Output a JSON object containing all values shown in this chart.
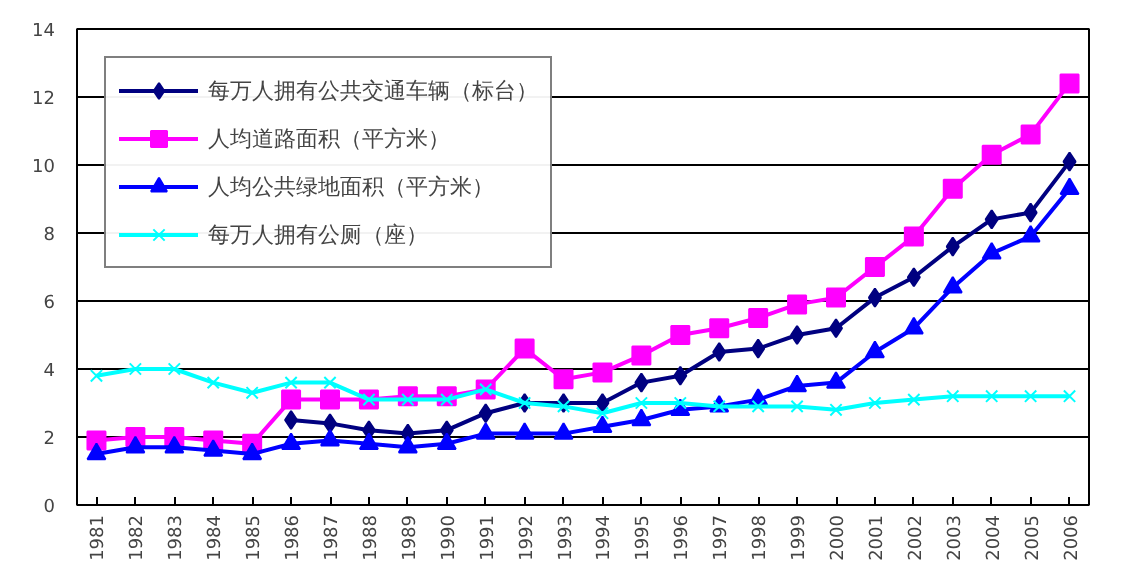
{
  "chart_data": {
    "type": "line",
    "categories": [
      "1981",
      "1982",
      "1983",
      "1984",
      "1985",
      "1986",
      "1987",
      "1988",
      "1989",
      "1990",
      "1991",
      "1992",
      "1993",
      "1994",
      "1995",
      "1996",
      "1997",
      "1998",
      "1999",
      "2000",
      "2001",
      "2002",
      "2003",
      "2004",
      "2005",
      "2006"
    ],
    "series": [
      {
        "name": "每万人拥有公共交通车辆（标台）",
        "color": "#000080",
        "marker": "diamond",
        "values": [
          null,
          null,
          null,
          null,
          null,
          2.5,
          2.4,
          2.2,
          2.1,
          2.2,
          2.7,
          3.0,
          3.0,
          3.0,
          3.6,
          3.8,
          4.5,
          4.6,
          5.0,
          5.2,
          6.1,
          6.7,
          7.6,
          8.4,
          8.6,
          10.1
        ]
      },
      {
        "name": "人均道路面积（平方米）",
        "color": "#ff00ff",
        "marker": "square",
        "values": [
          1.9,
          2.0,
          2.0,
          1.9,
          1.8,
          3.1,
          3.1,
          3.1,
          3.2,
          3.2,
          3.4,
          4.6,
          3.7,
          3.9,
          4.4,
          5.0,
          5.2,
          5.5,
          5.9,
          6.1,
          7.0,
          7.9,
          9.3,
          10.3,
          10.9,
          12.4
        ]
      },
      {
        "name": "人均公共绿地面积（平方米）",
        "color": "#0000ff",
        "marker": "triangle",
        "values": [
          1.5,
          1.7,
          1.7,
          1.6,
          1.5,
          1.8,
          1.9,
          1.8,
          1.7,
          1.8,
          2.1,
          2.1,
          2.1,
          2.3,
          2.5,
          2.8,
          2.9,
          3.1,
          3.5,
          3.6,
          4.5,
          5.2,
          6.4,
          7.4,
          7.9,
          9.3
        ]
      },
      {
        "name": "每万人拥有公厕（座）",
        "color": "#00ffff",
        "marker": "cross",
        "values": [
          3.8,
          4.0,
          4.0,
          3.6,
          3.3,
          3.6,
          3.6,
          3.1,
          3.1,
          3.1,
          3.4,
          3.0,
          2.9,
          2.7,
          3.0,
          3.0,
          2.9,
          2.9,
          2.9,
          2.8,
          3.0,
          3.1,
          3.2,
          3.2,
          3.2,
          3.2
        ]
      }
    ],
    "ylim": [
      0,
      14
    ],
    "yticks": [
      0,
      2,
      4,
      6,
      8,
      10,
      12,
      14
    ],
    "grid": "y",
    "legend": "top left",
    "line_style": "solid"
  }
}
